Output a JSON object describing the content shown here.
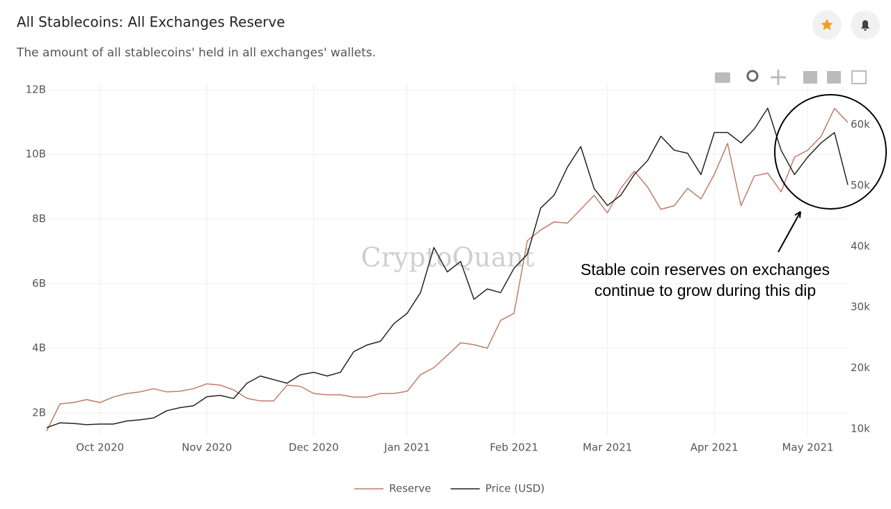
{
  "chart_data": {
    "type": "line",
    "title": "All Stablecoins: All Exchanges Reserve",
    "subtitle": "The amount of all stablecoins' held in all exchanges' wallets.",
    "watermark": "CryptoQuant",
    "annotation": [
      "Stable coin reserves on exchanges",
      "continue to grow during this dip"
    ],
    "categories": [
      null,
      null,
      null,
      null,
      "Oct 2020",
      null,
      null,
      null,
      null,
      null,
      null,
      null,
      "Nov 2020",
      null,
      null,
      null,
      null,
      null,
      null,
      null,
      "Dec 2020",
      null,
      null,
      null,
      null,
      null,
      null,
      "Jan 2021",
      null,
      null,
      null,
      null,
      null,
      null,
      null,
      "Feb 2021",
      null,
      null,
      null,
      null,
      null,
      null,
      "Mar 2021",
      null,
      null,
      null,
      null,
      null,
      null,
      null,
      "Apr 2021",
      null,
      null,
      null,
      null,
      null,
      null,
      "May 2021",
      null,
      null,
      null
    ],
    "series": [
      {
        "name": "Reserve",
        "color": "#c27a66",
        "values": [
          1.44,
          2.28,
          2.32,
          2.41,
          2.32,
          2.49,
          2.6,
          2.65,
          2.75,
          2.65,
          2.67,
          2.75,
          2.9,
          2.86,
          2.71,
          2.45,
          2.37,
          2.37,
          2.86,
          2.82,
          2.6,
          2.56,
          2.56,
          2.49,
          2.49,
          2.6,
          2.6,
          2.67,
          3.18,
          3.4,
          3.78,
          4.17,
          4.11,
          4.0,
          4.86,
          5.08,
          7.33,
          7.66,
          7.91,
          7.87,
          8.3,
          8.73,
          8.19,
          8.95,
          9.48,
          8.99,
          8.3,
          8.41,
          8.95,
          8.62,
          9.38,
          10.34,
          8.41,
          9.33,
          9.42,
          8.84,
          9.91,
          10.13,
          10.56,
          11.42,
          10.99
        ]
      },
      {
        "name": "Price (USD)",
        "color": "#222222",
        "axis": "y2",
        "values": [
          10200,
          11000,
          10900,
          10700,
          10800,
          10800,
          11300,
          11500,
          11800,
          13000,
          13500,
          13800,
          15300,
          15500,
          15000,
          17500,
          18700,
          18100,
          17500,
          18900,
          19300,
          18700,
          19300,
          22700,
          23800,
          24400,
          27300,
          29000,
          32400,
          39800,
          35800,
          37500,
          31300,
          33000,
          32400,
          36400,
          38700,
          46300,
          48400,
          53000,
          56400,
          49500,
          46700,
          48400,
          51800,
          54100,
          58100,
          55800,
          55300,
          51800,
          58700,
          58700,
          57000,
          59300,
          62700,
          55800,
          51800,
          54700,
          57000,
          58700,
          50100
        ]
      }
    ],
    "ylim": [
      1.31,
      12.19
    ],
    "yticks": [
      {
        "value": 2,
        "label": "2B"
      },
      {
        "value": 4,
        "label": "4B"
      },
      {
        "value": 6,
        "label": "6B"
      },
      {
        "value": 8,
        "label": "8B"
      },
      {
        "value": 10,
        "label": "10B"
      },
      {
        "value": 12,
        "label": "12B"
      }
    ],
    "y2lim": [
      8970,
      66750
    ],
    "y2ticks": [
      {
        "value": 10000,
        "label": "10k"
      },
      {
        "value": 20000,
        "label": "20k"
      },
      {
        "value": 30000,
        "label": "30k"
      },
      {
        "value": 40000,
        "label": "40k"
      },
      {
        "value": 50000,
        "label": "50k"
      },
      {
        "value": 60000,
        "label": "60k"
      }
    ],
    "grid": true,
    "legend": "bottom"
  }
}
